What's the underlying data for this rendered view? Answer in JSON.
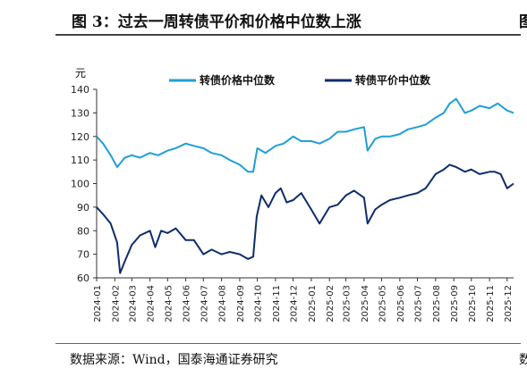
{
  "figure": {
    "title": "图 3：过去一周转债平价和价格中位数上涨",
    "right_edge_glyph": "图",
    "source": "数据来源：Wind，国泰海通证券研究",
    "source_edge_glyph": "数"
  },
  "colors": {
    "price_series": "#1e9fd6",
    "parity_series": "#0d2d6b",
    "axis": "#333333"
  },
  "chart_data": {
    "type": "line",
    "ylabel": "元",
    "ylim": [
      60,
      140
    ],
    "yticks": [
      60,
      70,
      80,
      90,
      100,
      110,
      120,
      130,
      140
    ],
    "grid": false,
    "legend_position": "top",
    "x_range": [
      "2024-01-01",
      "2025-12-12"
    ],
    "xticks": [
      "2024-01",
      "2024-02",
      "2024-03",
      "2024-04",
      "2024-05",
      "2024-06",
      "2024-07",
      "2024-08",
      "2024-09",
      "2024-10",
      "2024-11",
      "2024-12",
      "2025-01",
      "2025-02",
      "2025-03",
      "2025-04",
      "2025-05",
      "2025-06",
      "2025-07",
      "2025-08",
      "2025-09",
      "2025-10",
      "2025-11",
      "2025-12"
    ],
    "series": [
      {
        "name": "转债价格中位数",
        "color": "#1e9fd6",
        "x": [
          "2024-01-01",
          "2024-01-12",
          "2024-01-25",
          "2024-02-05",
          "2024-02-18",
          "2024-03-01",
          "2024-03-15",
          "2024-04-01",
          "2024-04-15",
          "2024-05-01",
          "2024-05-15",
          "2024-06-01",
          "2024-06-15",
          "2024-07-01",
          "2024-07-15",
          "2024-08-01",
          "2024-08-15",
          "2024-09-01",
          "2024-09-15",
          "2024-09-24",
          "2024-10-01",
          "2024-10-15",
          "2024-11-01",
          "2024-11-15",
          "2024-12-01",
          "2024-12-15",
          "2025-01-01",
          "2025-01-15",
          "2025-02-01",
          "2025-02-15",
          "2025-03-01",
          "2025-03-15",
          "2025-04-01",
          "2025-04-07",
          "2025-04-20",
          "2025-05-01",
          "2025-05-15",
          "2025-06-01",
          "2025-06-15",
          "2025-07-01",
          "2025-07-15",
          "2025-08-01",
          "2025-08-15",
          "2025-08-25",
          "2025-09-05",
          "2025-09-20",
          "2025-10-01",
          "2025-10-15",
          "2025-11-01",
          "2025-11-15",
          "2025-12-01",
          "2025-12-12"
        ],
        "y": [
          120,
          117,
          112,
          107,
          111,
          112,
          111,
          113,
          112,
          114,
          115,
          117,
          116,
          115,
          113,
          112,
          110,
          108,
          105,
          105,
          115,
          113,
          116,
          117,
          120,
          118,
          118,
          117,
          119,
          122,
          122,
          123,
          124,
          114,
          119,
          120,
          120,
          121,
          123,
          124,
          125,
          128,
          130,
          134,
          136,
          130,
          131,
          133,
          132,
          134,
          131,
          130
        ]
      },
      {
        "name": "转债平价中位数",
        "color": "#0d2d6b",
        "x": [
          "2024-01-01",
          "2024-01-12",
          "2024-01-25",
          "2024-02-05",
          "2024-02-10",
          "2024-02-18",
          "2024-03-01",
          "2024-03-15",
          "2024-04-01",
          "2024-04-10",
          "2024-04-20",
          "2024-05-01",
          "2024-05-15",
          "2024-06-01",
          "2024-06-15",
          "2024-07-01",
          "2024-07-15",
          "2024-08-01",
          "2024-08-15",
          "2024-09-01",
          "2024-09-15",
          "2024-09-24",
          "2024-09-30",
          "2024-10-08",
          "2024-10-20",
          "2024-11-01",
          "2024-11-10",
          "2024-11-20",
          "2024-12-01",
          "2024-12-15",
          "2025-01-01",
          "2025-01-15",
          "2025-02-01",
          "2025-02-15",
          "2025-03-01",
          "2025-03-15",
          "2025-04-01",
          "2025-04-07",
          "2025-04-20",
          "2025-05-01",
          "2025-05-15",
          "2025-06-01",
          "2025-06-15",
          "2025-07-01",
          "2025-07-15",
          "2025-08-01",
          "2025-08-15",
          "2025-08-25",
          "2025-09-05",
          "2025-09-20",
          "2025-10-01",
          "2025-10-15",
          "2025-11-01",
          "2025-11-10",
          "2025-11-20",
          "2025-12-01",
          "2025-12-12"
        ],
        "y": [
          90,
          87,
          83,
          75,
          62,
          67,
          74,
          78,
          80,
          73,
          80,
          79,
          81,
          76,
          76,
          70,
          72,
          70,
          71,
          70,
          68,
          69,
          86,
          95,
          90,
          96,
          98,
          92,
          93,
          96,
          89,
          83,
          90,
          91,
          95,
          97,
          94,
          83,
          89,
          91,
          93,
          94,
          95,
          96,
          98,
          104,
          106,
          108,
          107,
          105,
          106,
          104,
          105,
          105,
          104,
          98,
          100
        ]
      }
    ]
  }
}
